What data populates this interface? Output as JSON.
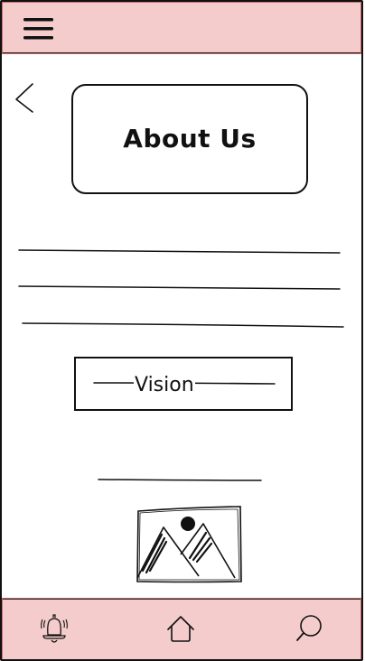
{
  "header": {
    "menu_icon": "hamburger-menu-icon"
  },
  "page": {
    "back_icon": "chevron-left-icon",
    "title": "About Us",
    "text_placeholder_lines": 3
  },
  "vision_section": {
    "label": "Vision"
  },
  "media": {
    "image_icon": "image-placeholder-icon"
  },
  "bottom_nav": {
    "items": [
      {
        "icon": "bell-icon"
      },
      {
        "icon": "home-icon"
      },
      {
        "icon": "search-icon"
      }
    ]
  },
  "colors": {
    "bar_fill": "#f5cccc",
    "bar_outline": "#c96b6b",
    "ink": "#111111"
  }
}
